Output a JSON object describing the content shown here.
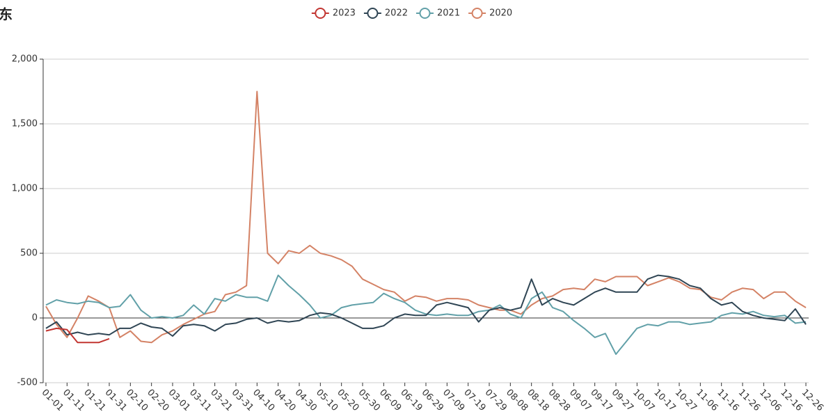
{
  "chart_data": {
    "type": "line",
    "title": "东",
    "categories": [
      "01-01",
      null,
      "01-11",
      null,
      "01-21",
      null,
      "01-31",
      null,
      "02-10",
      null,
      "02-20",
      null,
      "03-01",
      null,
      "03-11",
      null,
      "03-21",
      null,
      "03-31",
      null,
      "04-10",
      null,
      "04-20",
      null,
      "04-30",
      null,
      "05-10",
      null,
      "05-20",
      null,
      "05-30",
      null,
      "06-09",
      null,
      "06-19",
      null,
      "06-29",
      null,
      "07-09",
      null,
      "07-19",
      null,
      "07-29",
      null,
      "08-08",
      null,
      "08-18",
      null,
      "08-28",
      null,
      "09-07",
      null,
      "09-17",
      null,
      "09-27",
      null,
      "10-07",
      null,
      "10-17",
      null,
      "10-27",
      null,
      "11-06",
      null,
      "11-16",
      null,
      "11-26",
      null,
      "12-06",
      null,
      "12-16",
      null,
      "12-26"
    ],
    "series": [
      {
        "name": "2023",
        "color": "#c23531",
        "values": [
          -100,
          -80,
          -90,
          -190,
          -190,
          -190,
          -160,
          null,
          null,
          null,
          null,
          null,
          null,
          null,
          null,
          null,
          null,
          null,
          null,
          null,
          null,
          null,
          null,
          null,
          null,
          null,
          null,
          null,
          null,
          null,
          null,
          null,
          null,
          null,
          null,
          null,
          null,
          null,
          null,
          null,
          null,
          null,
          null,
          null,
          null,
          null,
          null,
          null,
          null,
          null,
          null,
          null,
          null,
          null,
          null,
          null,
          null,
          null,
          null,
          null,
          null,
          null,
          null,
          null,
          null,
          null,
          null,
          null,
          null,
          null,
          null,
          null,
          null
        ]
      },
      {
        "name": "2022",
        "color": "#2f4554",
        "values": [
          -80,
          -30,
          -130,
          -110,
          -130,
          -120,
          -130,
          -80,
          -80,
          -40,
          -70,
          -80,
          -140,
          -60,
          -50,
          -60,
          -100,
          -50,
          -40,
          -10,
          0,
          -40,
          -20,
          -30,
          -20,
          20,
          40,
          30,
          0,
          -40,
          -80,
          -80,
          -60,
          0,
          30,
          20,
          20,
          100,
          120,
          100,
          80,
          -30,
          60,
          80,
          60,
          80,
          300,
          100,
          150,
          120,
          100,
          150,
          200,
          230,
          200,
          200,
          200,
          300,
          330,
          320,
          300,
          250,
          230,
          150,
          100,
          120,
          50,
          20,
          0,
          -10,
          -20,
          70,
          -50
        ]
      },
      {
        "name": "2021",
        "color": "#61a0a8",
        "values": [
          100,
          140,
          120,
          110,
          130,
          120,
          80,
          90,
          180,
          60,
          0,
          10,
          0,
          20,
          100,
          30,
          150,
          130,
          180,
          160,
          160,
          130,
          330,
          250,
          180,
          100,
          0,
          20,
          80,
          100,
          110,
          120,
          190,
          150,
          120,
          60,
          30,
          20,
          30,
          20,
          20,
          50,
          60,
          100,
          30,
          0,
          150,
          200,
          80,
          50,
          -20,
          -80,
          -150,
          -120,
          -280,
          -180,
          -80,
          -50,
          -60,
          -30,
          -30,
          -50,
          -40,
          -30,
          20,
          40,
          30,
          50,
          20,
          10,
          20,
          -40,
          -30
        ]
      },
      {
        "name": "2020",
        "color": "#d48265",
        "values": [
          90,
          -50,
          -150,
          0,
          170,
          130,
          80,
          -150,
          -100,
          -180,
          -190,
          -130,
          -100,
          -50,
          -10,
          30,
          50,
          180,
          200,
          250,
          1750,
          500,
          420,
          520,
          500,
          560,
          500,
          480,
          450,
          400,
          300,
          260,
          220,
          200,
          130,
          170,
          160,
          130,
          150,
          150,
          140,
          100,
          80,
          60,
          60,
          30,
          100,
          150,
          170,
          220,
          230,
          220,
          300,
          280,
          320,
          320,
          320,
          250,
          280,
          310,
          280,
          230,
          220,
          160,
          140,
          200,
          230,
          220,
          150,
          200,
          200,
          130,
          80
        ]
      }
    ],
    "ylim": [
      -500,
      2000
    ],
    "yticks": [
      -500,
      0,
      500,
      {
        "value": 1000,
        "label": "1,000"
      },
      {
        "value": 1500,
        "label": "1,500"
      },
      {
        "value": 2000,
        "label": "2,000"
      }
    ],
    "grid": true
  }
}
